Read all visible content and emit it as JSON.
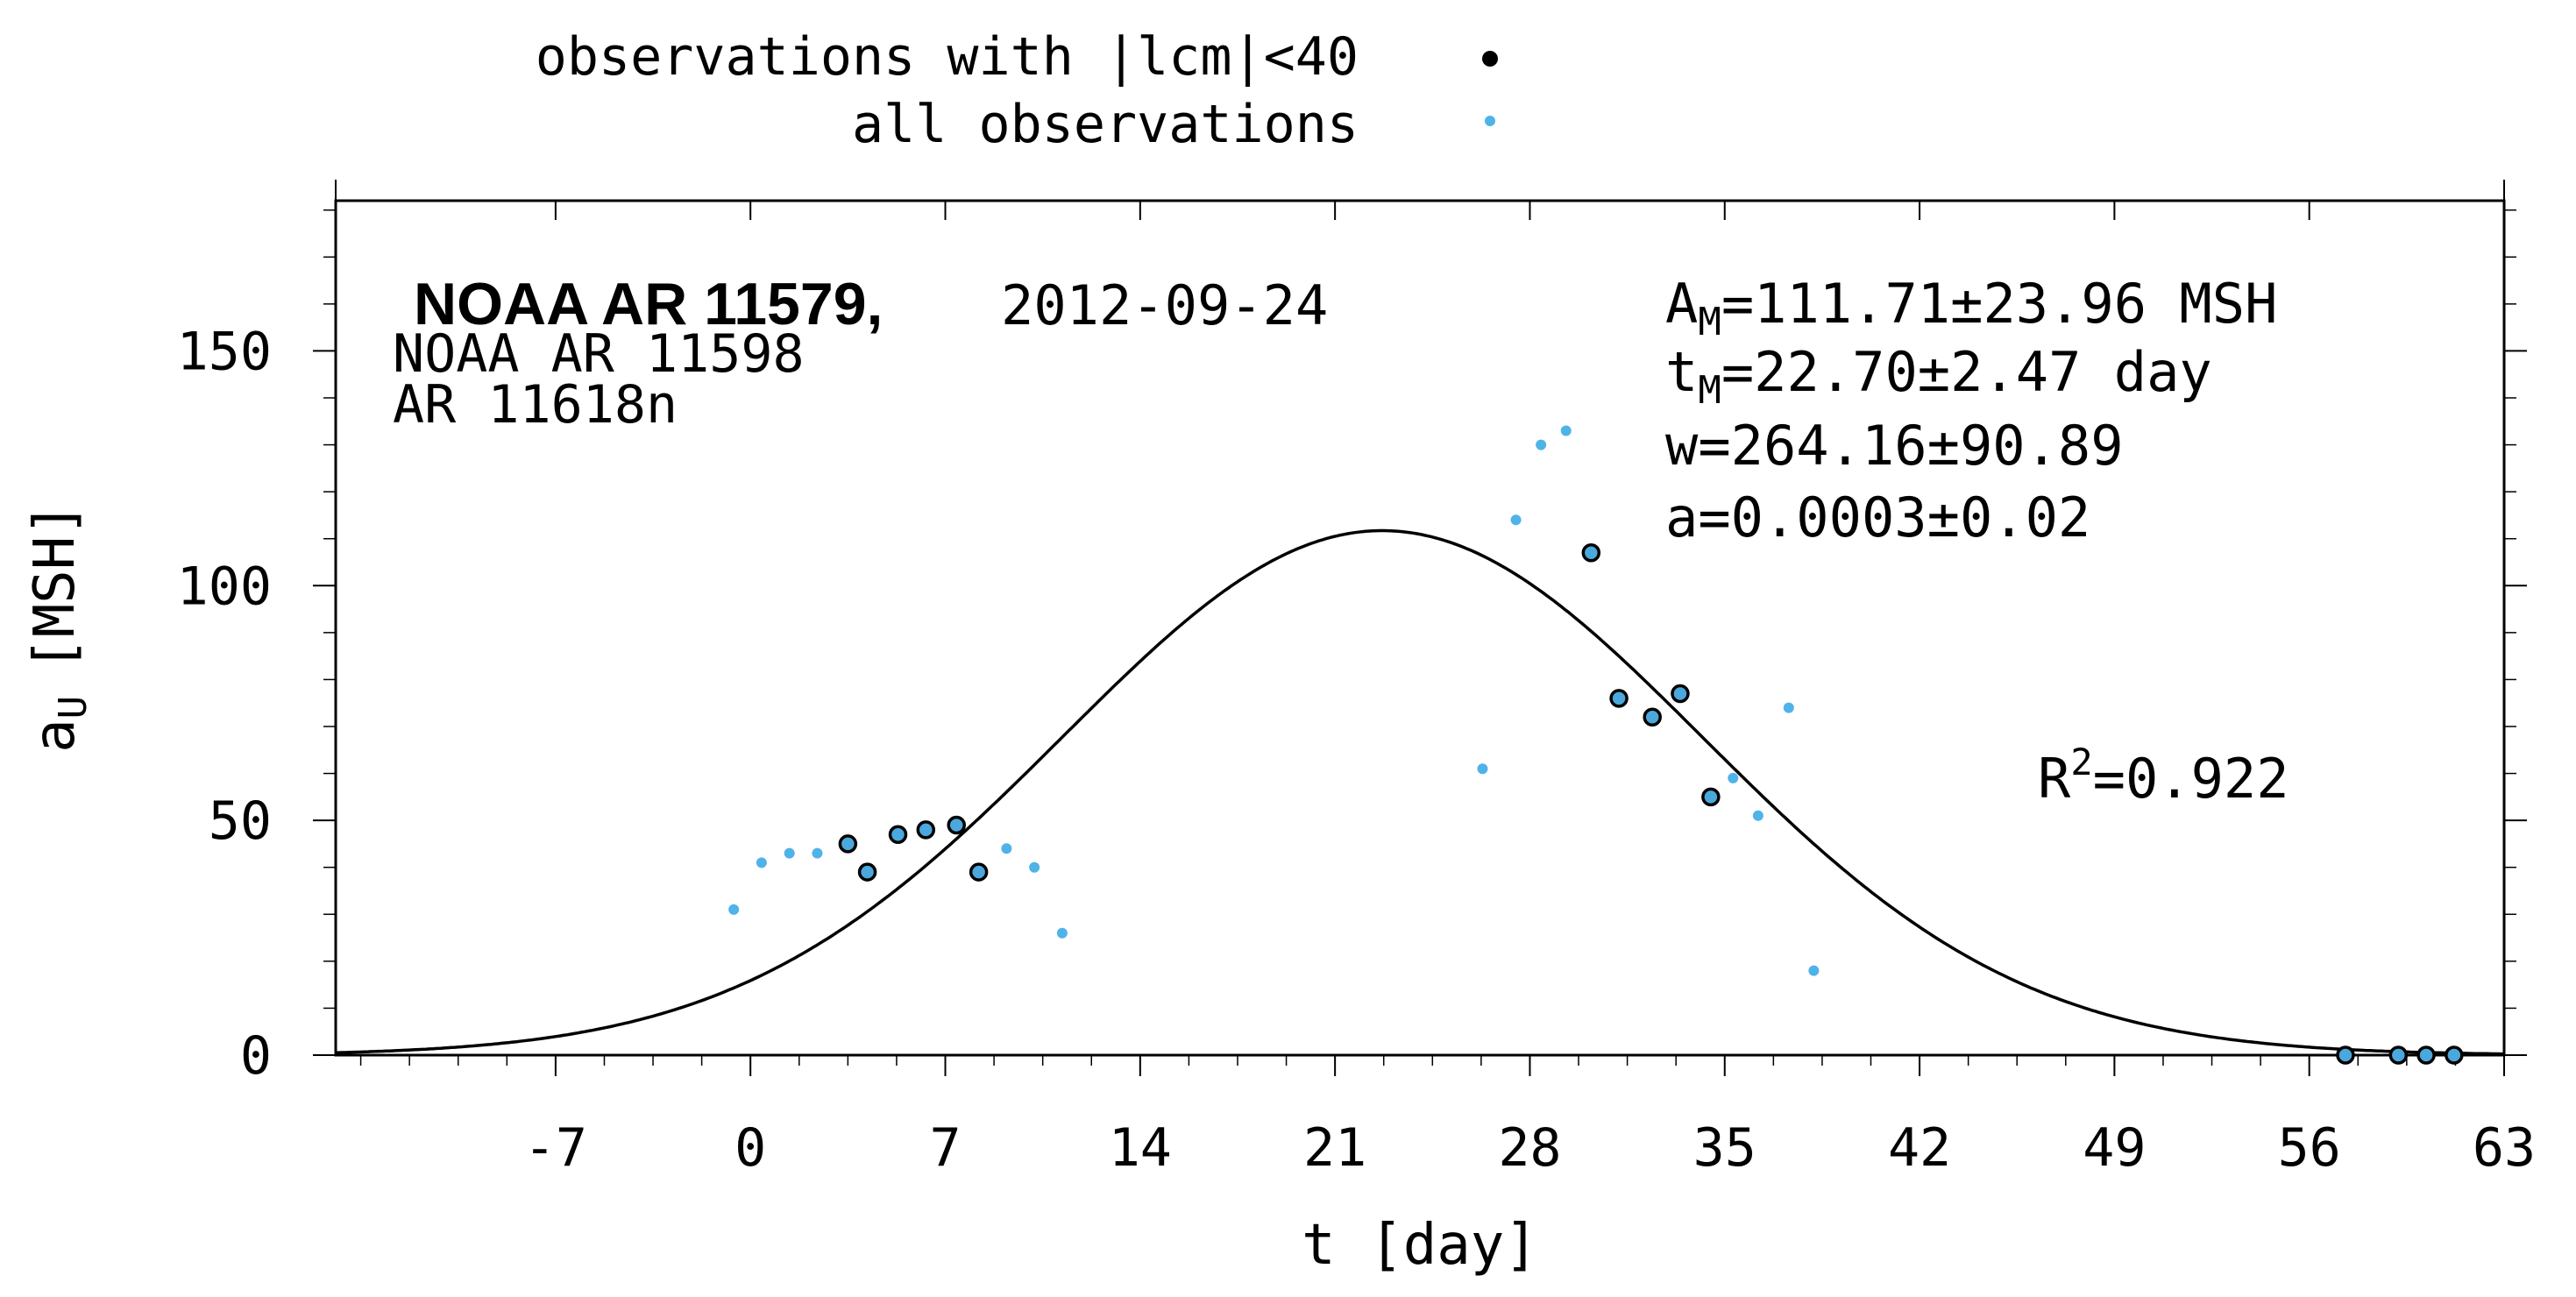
{
  "chart_data": {
    "type": "scatter",
    "title": "NOAA AR 11579,",
    "date": "2012-09-24",
    "subtitle_lines": [
      "NOAA AR 11598",
      "AR 11618n"
    ],
    "xlabel": "t [day]",
    "ylabel_main": "a",
    "ylabel_sub": "U",
    "ylabel_unit": "[MSH]",
    "xlim": [
      -14.9,
      63
    ],
    "ylim": [
      0,
      182
    ],
    "xticks": [
      -7,
      0,
      7,
      14,
      21,
      28,
      35,
      42,
      49,
      56,
      63
    ],
    "yticks": [
      0,
      50,
      100,
      150
    ],
    "legend": {
      "placement": "top",
      "entries": [
        {
          "label": "observations with |lcm|<40",
          "marker": "black-dot"
        },
        {
          "label": "all observations",
          "marker": "blue-dot"
        }
      ]
    },
    "fit_params": {
      "AM": {
        "prefix": "A",
        "sub": "M",
        "text": "=111.71±23.96 MSH"
      },
      "tM": {
        "prefix": "t",
        "sub": "M",
        "text": "=22.70±2.47 day"
      },
      "w": {
        "text": "w=264.16±90.89"
      },
      "a": {
        "text": "a=0.0003±0.02"
      }
    },
    "r2": {
      "prefix": "R",
      "sup": "2",
      "text": "=0.922"
    },
    "fit_curve": {
      "AM": 111.71,
      "tM": 22.7,
      "w": 264.16,
      "a": 0.0003
    },
    "series": [
      {
        "name": "observations with |lcm|<40",
        "color": "#000000",
        "fill": "#4aa8dc",
        "points": [
          [
            3.5,
            45
          ],
          [
            4.2,
            39
          ],
          [
            5.3,
            47
          ],
          [
            6.3,
            48
          ],
          [
            7.4,
            49
          ],
          [
            8.2,
            39
          ],
          [
            30.2,
            107
          ],
          [
            31.2,
            76
          ],
          [
            32.4,
            72
          ],
          [
            33.4,
            77
          ],
          [
            34.5,
            55
          ],
          [
            57.3,
            0
          ],
          [
            59.2,
            0
          ],
          [
            60.2,
            0
          ],
          [
            61.2,
            0
          ]
        ]
      },
      {
        "name": "all observations",
        "color": "#4fb3e8",
        "points": [
          [
            -0.6,
            31
          ],
          [
            0.4,
            41
          ],
          [
            1.4,
            43
          ],
          [
            2.4,
            43
          ],
          [
            9.2,
            44
          ],
          [
            10.2,
            40
          ],
          [
            11.2,
            26
          ],
          [
            26.3,
            61
          ],
          [
            27.5,
            114
          ],
          [
            28.4,
            130
          ],
          [
            29.3,
            133
          ],
          [
            35.3,
            59
          ],
          [
            36.2,
            51
          ],
          [
            37.3,
            74
          ],
          [
            38.2,
            18
          ]
        ]
      }
    ]
  }
}
